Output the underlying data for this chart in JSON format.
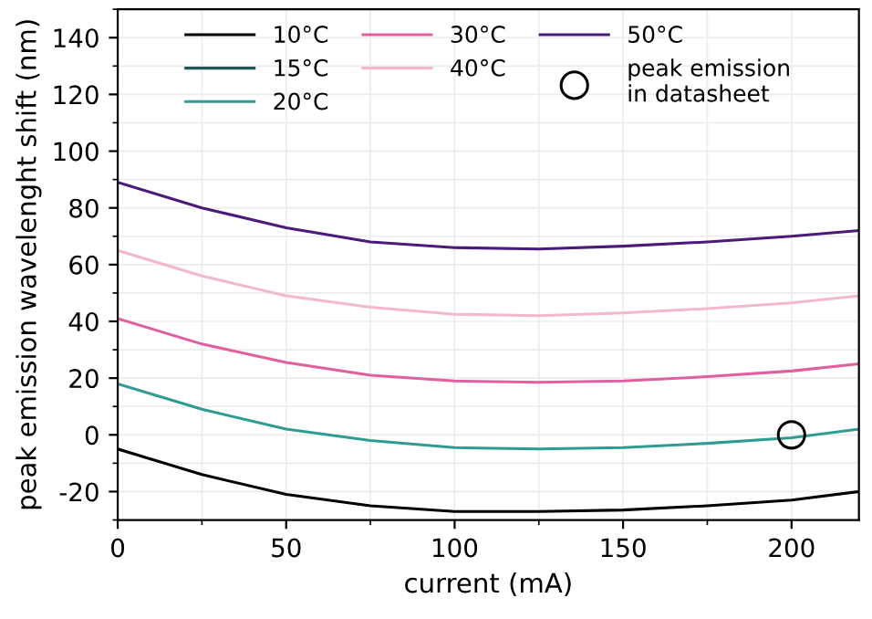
{
  "chart_data": {
    "type": "line",
    "xlabel": "current (mA)",
    "ylabel": "peak emission wavelenght shift (nm)",
    "x": [
      0,
      25,
      50,
      75,
      100,
      125,
      150,
      175,
      200,
      220
    ],
    "series": [
      {
        "name": "10°C",
        "color": "#000000",
        "values": [
          -5,
          -14,
          -21,
          -25,
          -27,
          -27,
          -26.5,
          -25,
          -23,
          -20
        ]
      },
      {
        "name": "15°C",
        "color": "#1f5656",
        "values": [
          null,
          null,
          null,
          null,
          null,
          null,
          null,
          null,
          null,
          null
        ]
      },
      {
        "name": "20°C",
        "color": "#2e9c92",
        "values": [
          18,
          9,
          2,
          -2,
          -4.5,
          -5,
          -4.5,
          -3,
          -1,
          2
        ]
      },
      {
        "name": "30°C",
        "color": "#e0609f",
        "values": [
          41,
          32,
          25.5,
          21,
          19,
          18.5,
          19,
          20.5,
          22.5,
          25
        ]
      },
      {
        "name": "40°C",
        "color": "#f2b8cc",
        "values": [
          65,
          56,
          49,
          45,
          42.5,
          42,
          43,
          44.5,
          46.5,
          49
        ]
      },
      {
        "name": "50°C",
        "color": "#4b1a7a",
        "values": [
          89,
          80,
          73,
          68,
          66,
          65.5,
          66.5,
          68,
          70,
          72
        ]
      },
      {
        "name": "peak emission\nin datasheet",
        "type": "scatter",
        "marker": "circle",
        "color": "#000000",
        "x": [
          200
        ],
        "values": [
          0
        ]
      }
    ],
    "xlim": [
      0,
      220
    ],
    "xticks": [
      0,
      50,
      100,
      150,
      200
    ],
    "ylim": [
      -30,
      150
    ],
    "yticks": [
      -20,
      0,
      20,
      40,
      60,
      80,
      100,
      120,
      140
    ],
    "grid": true,
    "legend": "top"
  }
}
